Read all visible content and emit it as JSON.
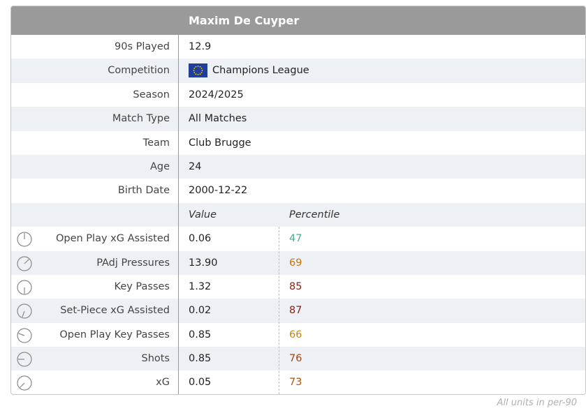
{
  "title": "Maxim De Cuyper",
  "info_rows": [
    {
      "label": "90s Played",
      "value": "12.9"
    },
    {
      "label": "Competition",
      "value": "Champions League"
    },
    {
      "label": "Season",
      "value": "2024/2025"
    },
    {
      "label": "Match Type",
      "value": "All Matches"
    },
    {
      "label": "Team",
      "value": "Club Brugge"
    },
    {
      "label": "Age",
      "value": "24"
    },
    {
      "label": "Birth Date",
      "value": "2000-12-22"
    }
  ],
  "stats_header": {
    "value": "Value",
    "percentile": "Percentile"
  },
  "stats_rows": [
    {
      "label": "Open Play xG Assisted",
      "value": "0.06",
      "percentile": 47,
      "color": "#4aab8f"
    },
    {
      "label": "PAdj Pressures",
      "value": "13.90",
      "percentile": 69,
      "color": "#c8730f"
    },
    {
      "label": "Key Passes",
      "value": "1.32",
      "percentile": 85,
      "color": "#8b1f0f"
    },
    {
      "label": "Set-Piece xG Assisted",
      "value": "0.02",
      "percentile": 87,
      "color": "#8b1f0f"
    },
    {
      "label": "Open Play Key Passes",
      "value": "0.85",
      "percentile": 66,
      "color": "#c8860f"
    },
    {
      "label": "Shots",
      "value": "0.85",
      "percentile": 76,
      "color": "#a8400f"
    },
    {
      "label": "xG",
      "value": "0.05",
      "percentile": 73,
      "color": "#b5520f"
    }
  ],
  "footer": "All units in per-90"
}
